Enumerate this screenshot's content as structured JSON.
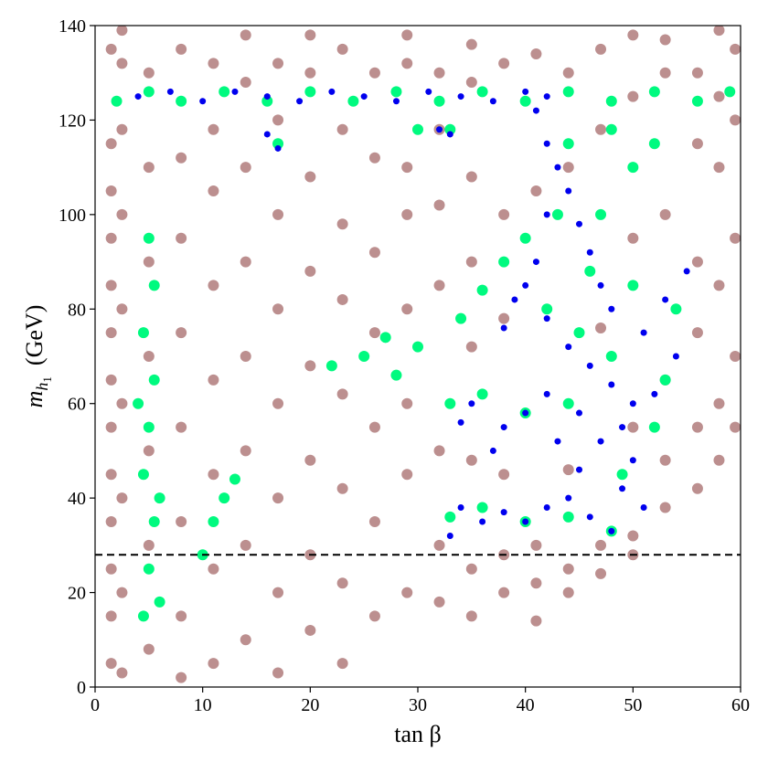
{
  "chart_data": {
    "type": "scatter",
    "xlabel": "tan β",
    "ylabel": [
      "m",
      "h",
      "1",
      "(GeV)"
    ],
    "xlim": [
      0,
      60
    ],
    "ylim": [
      0,
      140
    ],
    "xticks": [
      0,
      10,
      20,
      30,
      40,
      50,
      60
    ],
    "yticks": [
      0,
      20,
      40,
      60,
      80,
      100,
      120,
      140
    ],
    "hline": {
      "value": 28,
      "color": "#000000",
      "style": "dashed"
    },
    "series": [
      {
        "color": "#bc8f8f",
        "size": 6,
        "x": [
          1.5,
          1.5,
          1.5,
          1.5,
          1.5,
          1.5,
          1.5,
          1.5,
          1.5,
          1.5,
          1.5,
          1.5,
          1.5,
          2.5,
          2.5,
          2.5,
          2.5,
          2.5,
          2.5,
          2.5,
          2.5,
          2.5,
          5,
          5,
          5,
          5,
          5,
          5,
          5,
          8,
          8,
          8,
          8,
          8,
          8,
          8,
          8,
          11,
          11,
          11,
          11,
          11,
          11,
          11,
          11,
          14,
          14,
          14,
          14,
          14,
          14,
          14,
          14,
          17,
          17,
          17,
          17,
          17,
          17,
          17,
          17,
          20,
          20,
          20,
          20,
          20,
          20,
          20,
          20,
          23,
          23,
          23,
          23,
          23,
          23,
          23,
          23,
          26,
          26,
          26,
          26,
          26,
          26,
          26,
          29,
          29,
          29,
          29,
          29,
          29,
          29,
          29,
          32,
          32,
          32,
          32,
          32,
          32,
          32,
          35,
          35,
          35,
          35,
          35,
          35,
          35,
          35,
          38,
          38,
          38,
          38,
          38,
          38,
          41,
          41,
          41,
          41,
          41,
          44,
          44,
          44,
          44,
          44,
          47,
          47,
          47,
          47,
          47,
          50,
          50,
          50,
          50,
          50,
          50,
          53,
          53,
          53,
          53,
          53,
          53,
          56,
          56,
          56,
          56,
          56,
          56,
          58,
          58,
          58,
          58,
          58,
          58,
          59.5,
          59.5,
          59.5,
          59.5,
          59.5
        ],
        "y": [
          5,
          15,
          25,
          35,
          45,
          55,
          65,
          75,
          85,
          95,
          105,
          115,
          135,
          3,
          20,
          40,
          60,
          80,
          100,
          118,
          132,
          139,
          8,
          30,
          50,
          70,
          90,
          110,
          130,
          2,
          15,
          35,
          55,
          75,
          95,
          112,
          135,
          5,
          25,
          45,
          65,
          85,
          105,
          118,
          132,
          10,
          30,
          50,
          70,
          90,
          110,
          128,
          138,
          3,
          20,
          40,
          60,
          80,
          100,
          120,
          132,
          12,
          28,
          48,
          68,
          88,
          108,
          130,
          138,
          5,
          22,
          42,
          62,
          82,
          98,
          118,
          135,
          15,
          35,
          55,
          75,
          92,
          112,
          130,
          20,
          45,
          60,
          80,
          100,
          110,
          132,
          138,
          18,
          30,
          50,
          85,
          102,
          118,
          130,
          15,
          25,
          48,
          72,
          90,
          108,
          128,
          136,
          20,
          28,
          45,
          78,
          100,
          132,
          14,
          22,
          30,
          105,
          134,
          20,
          25,
          46,
          110,
          130,
          30,
          24,
          76,
          118,
          135,
          32,
          28,
          55,
          95,
          125,
          138,
          38,
          48,
          65,
          100,
          130,
          137,
          42,
          55,
          75,
          90,
          115,
          130,
          48,
          60,
          85,
          110,
          125,
          139,
          55,
          70,
          95,
          120,
          135
        ]
      },
      {
        "color": "#00fa7f",
        "size": 6,
        "x": [
          2,
          5,
          8,
          12,
          16,
          20,
          24,
          28,
          32,
          36,
          40,
          44,
          48,
          52,
          56,
          59,
          4.5,
          5,
          5.5,
          4.5,
          5,
          5.5,
          4.5,
          5.5,
          5,
          6,
          4,
          6,
          10,
          11,
          12,
          13,
          22,
          25,
          28,
          30,
          27,
          34,
          36,
          38,
          33,
          36,
          40,
          44,
          48,
          33,
          36,
          40,
          44,
          42,
          45,
          48,
          50,
          53,
          54,
          52,
          49,
          47,
          50,
          48,
          44,
          52,
          43,
          46,
          40,
          17,
          30,
          33
        ],
        "y": [
          124,
          126,
          124,
          126,
          124,
          126,
          124,
          126,
          124,
          126,
          124,
          126,
          124,
          126,
          124,
          126,
          15,
          25,
          35,
          45,
          55,
          65,
          75,
          85,
          95,
          18,
          60,
          40,
          28,
          35,
          40,
          44,
          68,
          70,
          66,
          72,
          74,
          78,
          84,
          90,
          36,
          38,
          35,
          36,
          33,
          60,
          62,
          58,
          60,
          80,
          75,
          70,
          85,
          65,
          80,
          55,
          45,
          100,
          110,
          118,
          115,
          115,
          100,
          88,
          95,
          115,
          118,
          118
        ]
      },
      {
        "color": "#0000ee",
        "size": 3.5,
        "x": [
          4,
          7,
          10,
          13,
          16,
          19,
          22,
          25,
          28,
          31,
          34,
          37,
          40,
          42,
          17,
          16,
          32,
          33,
          41,
          42,
          43,
          44,
          45,
          46,
          47,
          48,
          40,
          42,
          44,
          46,
          48,
          50,
          52,
          54,
          55,
          53,
          51,
          49,
          47,
          45,
          42,
          40,
          38,
          35,
          34,
          37,
          50,
          49,
          51,
          48,
          46,
          44,
          42,
          40,
          38,
          36,
          34,
          33,
          39,
          41,
          38,
          42,
          45,
          43
        ],
        "y": [
          125,
          126,
          124,
          126,
          125,
          124,
          126,
          125,
          124,
          126,
          125,
          124,
          126,
          125,
          114,
          117,
          118,
          117,
          122,
          115,
          110,
          105,
          98,
          92,
          85,
          80,
          85,
          78,
          72,
          68,
          64,
          60,
          62,
          70,
          88,
          82,
          75,
          55,
          52,
          58,
          62,
          58,
          55,
          60,
          56,
          50,
          48,
          42,
          38,
          33,
          36,
          40,
          38,
          35,
          37,
          35,
          38,
          32,
          82,
          90,
          76,
          100,
          46,
          52
        ]
      }
    ]
  }
}
